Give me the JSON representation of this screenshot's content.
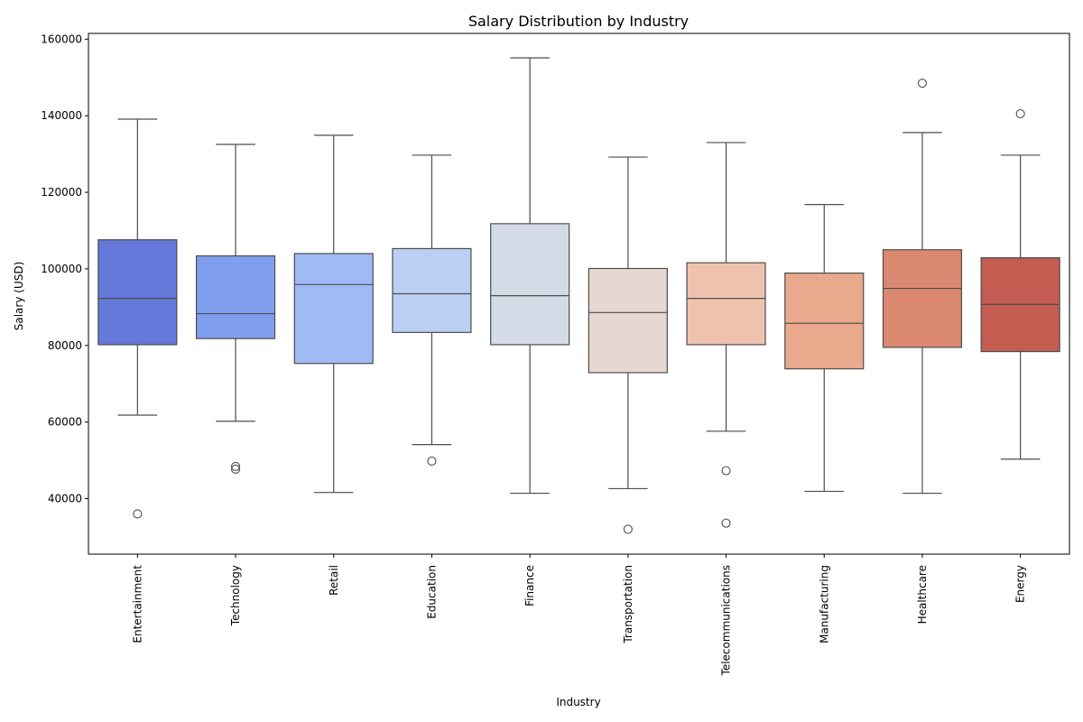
{
  "chart_data": {
    "type": "box",
    "title": "Salary Distribution by Industry",
    "xlabel": "Industry",
    "ylabel": "Salary (USD)",
    "ylim": [
      25500,
      161500
    ],
    "yticks": [
      40000,
      60000,
      80000,
      100000,
      120000,
      140000,
      160000
    ],
    "grid": false,
    "legend": "none",
    "categories": [
      "Entertainment",
      "Technology",
      "Retail",
      "Education",
      "Finance",
      "Transportation",
      "Telecommunications",
      "Manufacturing",
      "Healthcare",
      "Energy"
    ],
    "boxes": [
      {
        "category": "Entertainment",
        "whisker_low": 61800,
        "q1": 80200,
        "median": 92300,
        "q3": 107600,
        "whisker_high": 139100,
        "outliers": [
          36000
        ],
        "color": "#6479DA"
      },
      {
        "category": "Technology",
        "whisker_low": 60200,
        "q1": 81800,
        "median": 88300,
        "q3": 103400,
        "whisker_high": 132500,
        "outliers": [
          48400,
          47700
        ],
        "color": "#809FEE"
      },
      {
        "category": "Retail",
        "whisker_low": 41600,
        "q1": 75300,
        "median": 95900,
        "q3": 104000,
        "whisker_high": 134900,
        "outliers": [],
        "color": "#A0BAF5"
      },
      {
        "category": "Education",
        "whisker_low": 54100,
        "q1": 83400,
        "median": 93500,
        "q3": 105300,
        "whisker_high": 129700,
        "outliers": [
          49800
        ],
        "color": "#BBCEF3"
      },
      {
        "category": "Finance",
        "whisker_low": 41400,
        "q1": 80200,
        "median": 93000,
        "q3": 111800,
        "whisker_high": 155100,
        "outliers": [],
        "color": "#D4DAE6"
      },
      {
        "category": "Transportation",
        "whisker_low": 42600,
        "q1": 72900,
        "median": 88600,
        "q3": 100100,
        "whisker_high": 129200,
        "outliers": [
          32000
        ],
        "color": "#E5D8D0"
      },
      {
        "category": "Telecommunications",
        "whisker_low": 57600,
        "q1": 80200,
        "median": 92300,
        "q3": 101600,
        "whisker_high": 133000,
        "outliers": [
          47300,
          33600
        ],
        "color": "#EEC3AE"
      },
      {
        "category": "Manufacturing",
        "whisker_low": 41900,
        "q1": 73900,
        "median": 85800,
        "q3": 98900,
        "whisker_high": 116800,
        "outliers": [],
        "color": "#E9A98C"
      },
      {
        "category": "Healthcare",
        "whisker_low": 41400,
        "q1": 79500,
        "median": 94900,
        "q3": 105000,
        "whisker_high": 135600,
        "outliers": [
          148500
        ],
        "color": "#DB8871"
      },
      {
        "category": "Energy",
        "whisker_low": 50300,
        "q1": 78400,
        "median": 90700,
        "q3": 102900,
        "whisker_high": 129700,
        "outliers": [
          140500
        ],
        "color": "#C55C52"
      }
    ]
  }
}
